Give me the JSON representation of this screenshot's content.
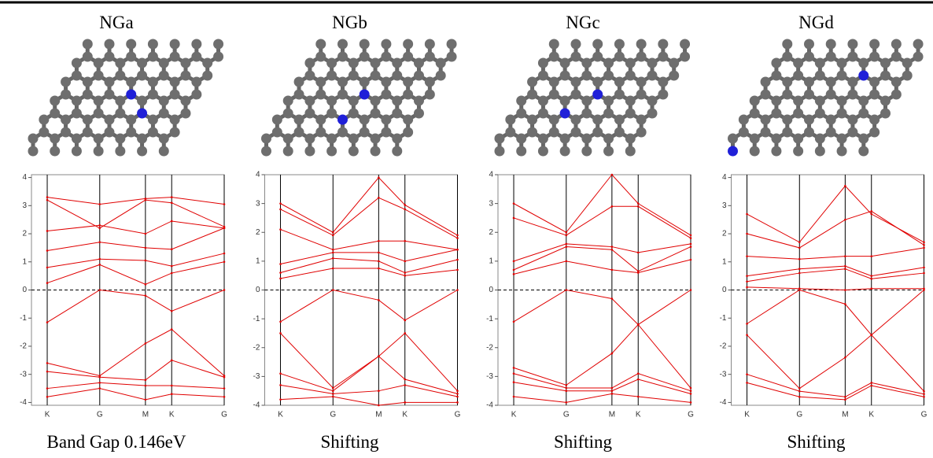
{
  "chart_data": [
    {
      "type": "line",
      "title": "NGa",
      "caption": "Band Gap 0.146eV",
      "color": "#e00000",
      "x": [
        0,
        1,
        1.87,
        2.37,
        3.37
      ],
      "xlim": [
        -0.3,
        3.37
      ],
      "xticks": [
        {
          "value": 0,
          "label": "K"
        },
        {
          "value": 1,
          "label": "G"
        },
        {
          "value": 1.87,
          "label": "M"
        },
        {
          "value": 2.37,
          "label": "K"
        },
        {
          "value": 3.37,
          "label": "G"
        }
      ],
      "ylim": [
        -4.1,
        4.1
      ],
      "yticks": [
        -4,
        -3,
        -2,
        -1,
        0,
        1,
        2,
        3,
        4
      ],
      "fermi_line": true,
      "series": [
        {
          "values": [
            -1.15,
            0,
            -0.2,
            -0.75,
            0
          ]
        },
        {
          "values": [
            0.25,
            0.9,
            0.2,
            0.6,
            1.0
          ]
        },
        {
          "values": [
            0.8,
            1.1,
            1.05,
            0.85,
            1.3
          ]
        },
        {
          "values": [
            1.4,
            1.7,
            1.5,
            1.45,
            2.2
          ]
        },
        {
          "values": [
            2.1,
            2.3,
            2.0,
            2.45,
            2.2
          ]
        },
        {
          "values": [
            3.2,
            2.2,
            3.2,
            3.1,
            2.25
          ]
        },
        {
          "values": [
            3.3,
            3.05,
            3.25,
            3.3,
            3.05
          ]
        },
        {
          "values": [
            -2.6,
            -3.05,
            -1.9,
            -1.4,
            -3.05
          ]
        },
        {
          "values": [
            -2.9,
            -3.1,
            -3.2,
            -2.5,
            -3.1
          ]
        },
        {
          "values": [
            -3.5,
            -3.3,
            -3.4,
            -3.4,
            -3.5
          ]
        },
        {
          "values": [
            -3.8,
            -3.5,
            -3.9,
            -3.7,
            -3.8
          ]
        }
      ]
    },
    {
      "type": "line",
      "title": "NGb",
      "caption": "Shifting",
      "color": "#e00000",
      "x": [
        0,
        1,
        1.87,
        2.37,
        3.37
      ],
      "xlim": [
        -0.3,
        3.37
      ],
      "xticks": [
        {
          "value": 0,
          "label": "K"
        },
        {
          "value": 1,
          "label": "G"
        },
        {
          "value": 1.87,
          "label": "M"
        },
        {
          "value": 2.37,
          "label": "K"
        },
        {
          "value": 3.37,
          "label": "G"
        }
      ],
      "ylim": [
        -4,
        4
      ],
      "yticks": [
        -4,
        -3,
        -2,
        -1,
        0,
        1,
        2,
        3,
        4
      ],
      "fermi_line": true,
      "series": [
        {
          "values": [
            -1.1,
            0,
            -0.35,
            -1.05,
            0
          ]
        },
        {
          "values": [
            0.4,
            0.75,
            0.75,
            0.5,
            0.7
          ]
        },
        {
          "values": [
            0.6,
            1.1,
            1.0,
            0.6,
            1.05
          ]
        },
        {
          "values": [
            0.9,
            1.3,
            1.3,
            1.0,
            1.4
          ]
        },
        {
          "values": [
            2.1,
            1.4,
            1.7,
            1.7,
            1.4
          ]
        },
        {
          "values": [
            2.8,
            1.9,
            3.2,
            2.8,
            1.8
          ]
        },
        {
          "values": [
            3.0,
            2.0,
            3.9,
            2.95,
            1.9
          ]
        },
        {
          "values": [
            -1.5,
            -3.4,
            -2.3,
            -1.5,
            -3.5
          ]
        },
        {
          "values": [
            -2.9,
            -3.5,
            -2.3,
            -3.1,
            -3.6
          ]
        },
        {
          "values": [
            -3.3,
            -3.6,
            -3.5,
            -3.3,
            -3.7
          ]
        },
        {
          "values": [
            -3.8,
            -3.7,
            -4.0,
            -3.9,
            -3.9
          ]
        }
      ]
    },
    {
      "type": "line",
      "title": "NGc",
      "caption": "Shifting",
      "color": "#e00000",
      "x": [
        0,
        1,
        1.87,
        2.37,
        3.37
      ],
      "xlim": [
        -0.3,
        3.37
      ],
      "xticks": [
        {
          "value": 0,
          "label": "K"
        },
        {
          "value": 1,
          "label": "G"
        },
        {
          "value": 1.87,
          "label": "M"
        },
        {
          "value": 2.37,
          "label": "K"
        },
        {
          "value": 3.37,
          "label": "G"
        }
      ],
      "ylim": [
        -4,
        4
      ],
      "yticks": [
        -4,
        -3,
        -2,
        -1,
        0,
        1,
        2,
        3,
        4
      ],
      "fermi_line": true,
      "series": [
        {
          "values": [
            -1.1,
            0,
            -0.3,
            -1.2,
            0
          ]
        },
        {
          "values": [
            0.55,
            1.0,
            0.7,
            0.6,
            1.05
          ]
        },
        {
          "values": [
            0.7,
            1.5,
            1.4,
            0.65,
            1.5
          ]
        },
        {
          "values": [
            1.0,
            1.6,
            1.5,
            1.3,
            1.6
          ]
        },
        {
          "values": [
            2.5,
            1.9,
            2.9,
            2.9,
            1.8
          ]
        },
        {
          "values": [
            3.0,
            2.0,
            4.0,
            3.0,
            1.9
          ]
        },
        {
          "values": [
            -2.7,
            -3.3,
            -2.2,
            -1.2,
            -3.4
          ]
        },
        {
          "values": [
            -2.9,
            -3.4,
            -3.4,
            -2.9,
            -3.5
          ]
        },
        {
          "values": [
            -3.2,
            -3.5,
            -3.5,
            -3.1,
            -3.6
          ]
        },
        {
          "values": [
            -3.7,
            -3.9,
            -3.6,
            -3.7,
            -3.9
          ]
        }
      ]
    },
    {
      "type": "line",
      "title": "NGd",
      "caption": "Shifting",
      "color": "#e00000",
      "x": [
        0,
        1,
        1.87,
        2.37,
        3.37
      ],
      "xlim": [
        -0.3,
        3.37
      ],
      "xticks": [
        {
          "value": 0,
          "label": "K"
        },
        {
          "value": 1,
          "label": "G"
        },
        {
          "value": 1.87,
          "label": "M"
        },
        {
          "value": 2.37,
          "label": "K"
        },
        {
          "value": 3.37,
          "label": "G"
        }
      ],
      "ylim": [
        -4.1,
        4.1
      ],
      "yticks": [
        -4,
        -3,
        -2,
        -1,
        0,
        1,
        2,
        3,
        4
      ],
      "fermi_line": true,
      "series": [
        {
          "values": [
            -1.2,
            0,
            -0.5,
            -1.6,
            0
          ]
        },
        {
          "values": [
            0.1,
            0.05,
            0.0,
            0.05,
            0.05
          ]
        },
        {
          "values": [
            0.3,
            0.6,
            0.75,
            0.4,
            0.6
          ]
        },
        {
          "values": [
            0.5,
            0.75,
            0.85,
            0.5,
            0.8
          ]
        },
        {
          "values": [
            1.2,
            1.1,
            1.2,
            1.2,
            1.5
          ]
        },
        {
          "values": [
            2.0,
            1.5,
            2.5,
            2.8,
            1.6
          ]
        },
        {
          "values": [
            2.7,
            1.7,
            3.7,
            2.7,
            1.7
          ]
        },
        {
          "values": [
            -1.6,
            -3.5,
            -2.4,
            -1.6,
            -3.6
          ]
        },
        {
          "values": [
            -3.0,
            -3.6,
            -3.8,
            -3.3,
            -3.7
          ]
        },
        {
          "values": [
            -3.3,
            -3.8,
            -3.9,
            -3.4,
            -3.8
          ]
        }
      ]
    }
  ]
}
